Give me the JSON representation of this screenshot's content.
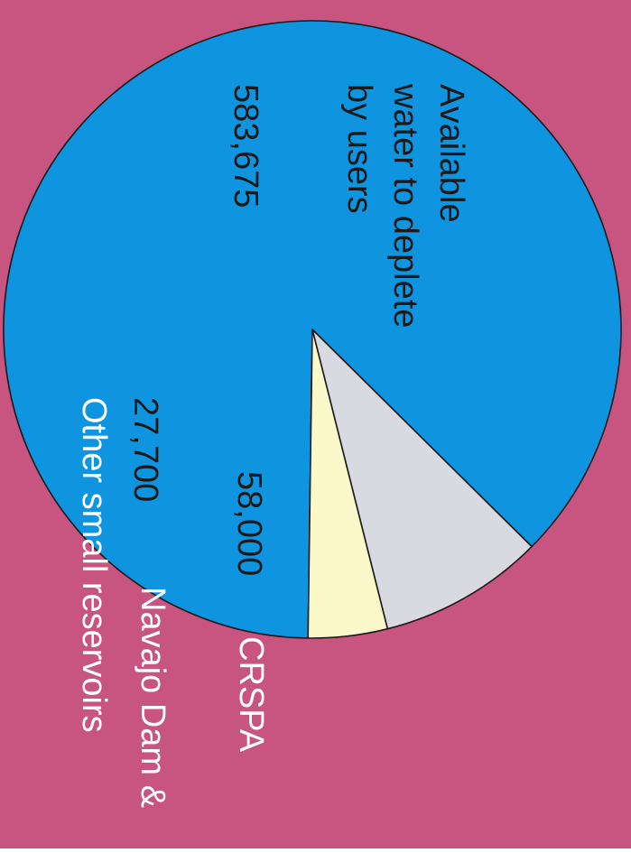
{
  "colors": {
    "background": "#c8557f",
    "bottom_strip": "#ffffff",
    "outline": "#1a1a1a",
    "dark_text": "#1a1a1a",
    "light_text": "#ffffff"
  },
  "chart_data": {
    "type": "pie",
    "orientation": "rotated 90 degrees clockwise",
    "slices": [
      {
        "label": "Available water to deplete by users",
        "label_lines": [
          "Available",
          "water to deplete",
          "by users"
        ],
        "value": 583675,
        "value_label": "583,675",
        "color": "#0f95e0"
      },
      {
        "label": "CRSPA",
        "label_lines": [
          "CRSPA"
        ],
        "value": 58000,
        "value_label": "58,000",
        "color": "#d8d9e1"
      },
      {
        "label": "Navajo Dam & Other small reservoirs",
        "label_lines": [
          "Navajo Dam &",
          "Other small reservoirs"
        ],
        "value": 27700,
        "value_label": "27,700",
        "color": "#fbf8c9"
      }
    ]
  }
}
